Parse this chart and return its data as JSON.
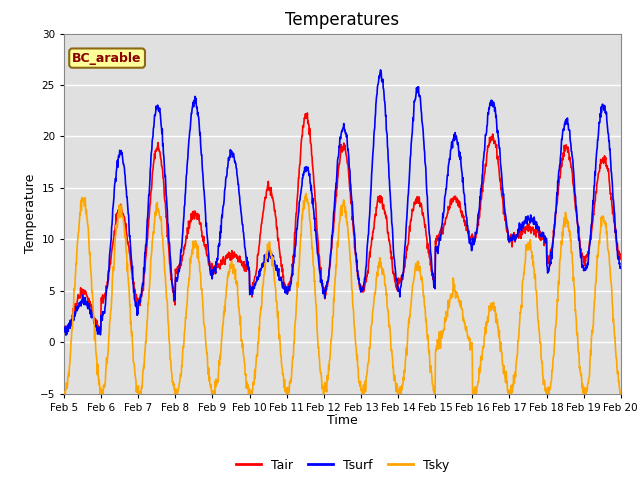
{
  "title": "Temperatures",
  "xlabel": "Time",
  "ylabel": "Temperature",
  "ylim": [
    -5,
    30
  ],
  "annotation": "BC_arable",
  "line_colors": {
    "Tair": "#FF0000",
    "Tsurf": "#0000FF",
    "Tsky": "#FFA500"
  },
  "line_widths": {
    "Tair": 1.2,
    "Tsurf": 1.2,
    "Tsky": 1.2
  },
  "background_color": "#E0E0E0",
  "grid_color": "#FFFFFF",
  "xtick_labels": [
    "Feb 5",
    "Feb 6",
    "Feb 7",
    "Feb 8",
    "Feb 9",
    "Feb 10",
    "Feb 11",
    "Feb 12",
    "Feb 13",
    "Feb 14",
    "Feb 15",
    "Feb 16",
    "Feb 17",
    "Feb 18",
    "Feb 19",
    "Feb 20"
  ],
  "ytick_values": [
    -5,
    0,
    5,
    10,
    15,
    20,
    25,
    30
  ],
  "title_fontsize": 12,
  "axis_label_fontsize": 9,
  "tick_fontsize": 7.5,
  "legend_fontsize": 9
}
